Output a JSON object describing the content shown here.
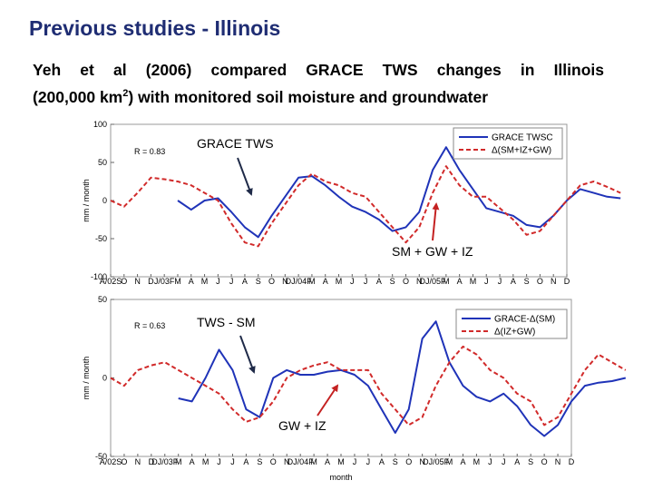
{
  "slide": {
    "title": "Previous studies - Illinois",
    "description_line1": "Yeh et al (2006) compared GRACE TWS changes in Illinois",
    "description_line2_pre": "(200,000 km",
    "description_line2_sup": "2",
    "description_line2_post": ") with monitored soil moisture and groundwater"
  },
  "colors": {
    "blue": "#1f33b8",
    "red": "#d12a2a",
    "arrow_dark": "#1f2a48",
    "arrow_red": "#c42222",
    "title": "#1f2d73"
  },
  "chart_data": [
    {
      "type": "line",
      "ylabel": "mm / month",
      "xlabel": "",
      "ylim": [
        -100,
        100
      ],
      "yticks": [
        100,
        50,
        0,
        -50,
        -100
      ],
      "r_text": "R = 0.83",
      "x_tick_labels": [
        "A/02S",
        "O",
        "N",
        "D",
        "J/03F",
        "M",
        "A",
        "M",
        "J",
        "J",
        "A",
        "S",
        "O",
        "N",
        "DJ/04F",
        "M",
        "A",
        "M",
        "J",
        "J",
        "A",
        "S",
        "O",
        "N",
        "DJ/05F",
        "M",
        "A",
        "M",
        "J",
        "J",
        "A",
        "S",
        "O",
        "N",
        "D"
      ],
      "legend": [
        "GRACE TWSC",
        "Δ(SM+IZ+GW)"
      ],
      "annotations": {
        "top": "GRACE TWS",
        "bottom": "SM + GW + IZ"
      },
      "series": [
        {
          "name": "GRACE TWSC",
          "style": "solid",
          "color": "blue",
          "x": [
            5,
            6,
            7,
            8,
            9,
            10,
            11,
            12,
            13,
            14,
            15,
            16,
            17,
            18,
            19,
            20,
            21,
            22,
            23,
            24,
            25,
            26,
            27,
            28,
            29,
            30,
            31,
            32,
            33,
            34,
            35,
            36,
            37,
            38
          ],
          "values": [
            0,
            -12,
            0,
            3,
            -15,
            -35,
            -48,
            -20,
            5,
            30,
            32,
            20,
            5,
            -8,
            -15,
            -25,
            -40,
            -35,
            -15,
            40,
            70,
            40,
            15,
            -10,
            -15,
            -20,
            -32,
            -35,
            -20,
            0,
            15,
            10,
            5,
            3
          ]
        },
        {
          "name": "Δ(SM+IZ+GW)",
          "style": "dashed",
          "color": "red",
          "x": [
            0,
            1,
            2,
            3,
            4,
            5,
            6,
            7,
            8,
            9,
            10,
            11,
            12,
            13,
            14,
            15,
            16,
            17,
            18,
            19,
            20,
            21,
            22,
            23,
            24,
            25,
            26,
            27,
            28,
            29,
            30,
            31,
            32,
            33,
            34,
            35,
            36,
            37,
            38
          ],
          "values": [
            0,
            -8,
            10,
            30,
            28,
            25,
            20,
            10,
            0,
            -30,
            -55,
            -60,
            -30,
            -5,
            20,
            35,
            25,
            20,
            10,
            5,
            -15,
            -35,
            -55,
            -35,
            10,
            45,
            20,
            5,
            5,
            -10,
            -25,
            -45,
            -40,
            -20,
            0,
            20,
            25,
            18,
            10
          ]
        }
      ]
    },
    {
      "type": "line",
      "ylabel": "mm / month",
      "xlabel": "month",
      "ylim": [
        -50,
        50
      ],
      "yticks": [
        50,
        0,
        -50
      ],
      "r_text": "R = 0.63",
      "x_tick_labels": [
        "A/02S",
        "O",
        "N",
        "D",
        "DJ/03F",
        "M",
        "A",
        "M",
        "J",
        "J",
        "A",
        "S",
        "O",
        "N",
        "DJ/04F",
        "M",
        "A",
        "M",
        "J",
        "J",
        "A",
        "S",
        "O",
        "N",
        "DJ/05F",
        "M",
        "A",
        "M",
        "J",
        "J",
        "A",
        "S",
        "O",
        "N",
        "D"
      ],
      "legend": [
        "GRACE-Δ(SM)",
        "Δ(IZ+GW)"
      ],
      "annotations": {
        "top": "TWS - SM",
        "bottom": "GW + IZ"
      },
      "series": [
        {
          "name": "GRACE-Δ(SM)",
          "style": "solid",
          "color": "blue",
          "x": [
            5,
            6,
            7,
            8,
            9,
            10,
            11,
            12,
            13,
            14,
            15,
            16,
            17,
            18,
            19,
            20,
            21,
            22,
            23,
            24,
            25,
            26,
            27,
            28,
            29,
            30,
            31,
            32,
            33,
            34,
            35,
            36,
            37,
            38
          ],
          "values": [
            -13,
            -15,
            0,
            18,
            5,
            -20,
            -25,
            0,
            5,
            2,
            2,
            4,
            5,
            2,
            -5,
            -20,
            -35,
            -20,
            25,
            36,
            10,
            -5,
            -12,
            -15,
            -10,
            -18,
            -30,
            -37,
            -30,
            -15,
            -5,
            -3,
            -2,
            0
          ]
        },
        {
          "name": "Δ(IZ+GW)",
          "style": "dashed",
          "color": "red",
          "x": [
            0,
            1,
            2,
            3,
            4,
            5,
            6,
            7,
            8,
            9,
            10,
            11,
            12,
            13,
            14,
            15,
            16,
            17,
            18,
            19,
            20,
            21,
            22,
            23,
            24,
            25,
            26,
            27,
            28,
            29,
            30,
            31,
            32,
            33,
            34,
            35,
            36,
            37,
            38
          ],
          "values": [
            0,
            -5,
            5,
            8,
            10,
            5,
            0,
            -5,
            -10,
            -20,
            -28,
            -25,
            -15,
            0,
            5,
            8,
            10,
            5,
            5,
            5,
            -10,
            -20,
            -30,
            -25,
            -5,
            10,
            20,
            15,
            5,
            0,
            -10,
            -15,
            -30,
            -25,
            -10,
            5,
            15,
            10,
            5
          ]
        }
      ]
    }
  ]
}
